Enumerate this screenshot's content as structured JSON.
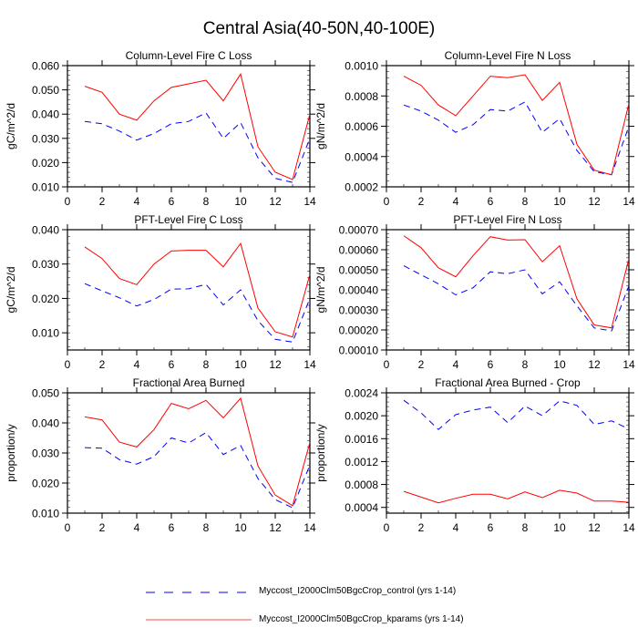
{
  "title": "Central Asia(40-50N,40-100E)",
  "legend": [
    {
      "label": "Myccost_I2000Clm50BgcCrop_control (yrs 1-14)",
      "color": "#0000ff",
      "dash": true
    },
    {
      "label": "Myccost_I2000Clm50BgcCrop_kparams (yrs 1-14)",
      "color": "#ff0000",
      "dash": false
    }
  ],
  "chart_data": [
    {
      "type": "line",
      "title": "Column-Level Fire C Loss",
      "xlabel": "",
      "ylabel": "gC/m^2/d",
      "xlim": [
        0,
        14
      ],
      "ylim": [
        0.01,
        0.06
      ],
      "xticks": [
        "0",
        "2",
        "4",
        "6",
        "8",
        "10",
        "12",
        "14"
      ],
      "yticks": [
        "0.010",
        "0.020",
        "0.030",
        "0.040",
        "0.050",
        "0.060"
      ],
      "x": [
        1,
        2,
        3,
        4,
        5,
        6,
        7,
        8,
        9,
        10,
        11,
        12,
        13,
        14
      ],
      "series": [
        {
          "name": "Myccost_I2000Clm50BgcCrop_control (yrs 1-14)",
          "values": [
            0.037,
            0.036,
            0.033,
            0.0293,
            0.032,
            0.036,
            0.037,
            0.0405,
            0.03,
            0.0365,
            0.022,
            0.0135,
            0.0118,
            0.03
          ]
        },
        {
          "name": "Myccost_I2000Clm50BgcCrop_kparams (yrs 1-14)",
          "values": [
            0.0515,
            0.049,
            0.04,
            0.0375,
            0.0455,
            0.051,
            0.0525,
            0.054,
            0.0455,
            0.0565,
            0.0265,
            0.016,
            0.013,
            0.04
          ]
        }
      ]
    },
    {
      "type": "line",
      "title": "Column-Level Fire N Loss",
      "xlabel": "",
      "ylabel": "gN/m^2/d",
      "xlim": [
        0,
        14
      ],
      "ylim": [
        0.0002,
        0.001
      ],
      "xticks": [
        "0",
        "2",
        "4",
        "6",
        "8",
        "10",
        "12",
        "14"
      ],
      "yticks": [
        "0.0002",
        "0.0004",
        "0.0006",
        "0.0008",
        "0.0010"
      ],
      "x": [
        1,
        2,
        3,
        4,
        5,
        6,
        7,
        8,
        9,
        10,
        11,
        12,
        13,
        14
      ],
      "series": [
        {
          "name": "Myccost_I2000Clm50BgcCrop_control (yrs 1-14)",
          "values": [
            0.00074,
            0.0007,
            0.00064,
            0.00056,
            0.00061,
            0.00071,
            0.0007,
            0.00076,
            0.00056,
            0.00065,
            0.00044,
            0.0003,
            0.00028,
            0.0006
          ]
        },
        {
          "name": "Myccost_I2000Clm50BgcCrop_kparams (yrs 1-14)",
          "values": [
            0.00093,
            0.00087,
            0.00074,
            0.00067,
            0.0008,
            0.00093,
            0.00092,
            0.00094,
            0.00077,
            0.00089,
            0.00048,
            0.00031,
            0.00028,
            0.00075
          ]
        }
      ]
    },
    {
      "type": "line",
      "title": "PFT-Level Fire C Loss",
      "xlabel": "",
      "ylabel": "gC/m^2/d",
      "xlim": [
        0,
        14
      ],
      "ylim": [
        0.005,
        0.04
      ],
      "xticks": [
        "0",
        "2",
        "4",
        "6",
        "8",
        "10",
        "12",
        "14"
      ],
      "yticks": [
        "0.010",
        "0.020",
        "0.030",
        "0.040"
      ],
      "x": [
        1,
        2,
        3,
        4,
        5,
        6,
        7,
        8,
        9,
        10,
        11,
        12,
        13,
        14
      ],
      "series": [
        {
          "name": "Myccost_I2000Clm50BgcCrop_control (yrs 1-14)",
          "values": [
            0.0243,
            0.0222,
            0.0202,
            0.0178,
            0.0197,
            0.0227,
            0.0228,
            0.0241,
            0.0181,
            0.0225,
            0.0135,
            0.0081,
            0.0073,
            0.02
          ]
        },
        {
          "name": "Myccost_I2000Clm50BgcCrop_kparams (yrs 1-14)",
          "values": [
            0.035,
            0.0316,
            0.0258,
            0.024,
            0.03,
            0.0338,
            0.034,
            0.034,
            0.0292,
            0.036,
            0.0172,
            0.0103,
            0.0088,
            0.027
          ]
        }
      ]
    },
    {
      "type": "line",
      "title": "PFT-Level Fire N Loss",
      "xlabel": "",
      "ylabel": "gN/m^2/d",
      "xlim": [
        0,
        14
      ],
      "ylim": [
        0.0001,
        0.0007
      ],
      "xticks": [
        "0",
        "2",
        "4",
        "6",
        "8",
        "10",
        "12",
        "14"
      ],
      "yticks": [
        "0.00010",
        "0.00020",
        "0.00030",
        "0.00040",
        "0.00050",
        "0.00060",
        "0.00070"
      ],
      "x": [
        1,
        2,
        3,
        4,
        5,
        6,
        7,
        8,
        9,
        10,
        11,
        12,
        13,
        14
      ],
      "series": [
        {
          "name": "Myccost_I2000Clm50BgcCrop_control (yrs 1-14)",
          "values": [
            0.00052,
            0.000475,
            0.00043,
            0.000375,
            0.00041,
            0.00049,
            0.00048,
            0.0005,
            0.00038,
            0.00044,
            0.00032,
            0.00021,
            0.000195,
            0.00042
          ]
        },
        {
          "name": "Myccost_I2000Clm50BgcCrop_kparams (yrs 1-14)",
          "values": [
            0.00067,
            0.00061,
            0.00051,
            0.000465,
            0.00057,
            0.000665,
            0.000648,
            0.00065,
            0.00054,
            0.00062,
            0.000355,
            0.000225,
            0.00021,
            0.000555
          ]
        }
      ]
    },
    {
      "type": "line",
      "title": "Fractional Area Burned",
      "xlabel": "",
      "ylabel": "proportion/y",
      "xlim": [
        0,
        14
      ],
      "ylim": [
        0.01,
        0.05
      ],
      "xticks": [
        "0",
        "2",
        "4",
        "6",
        "8",
        "10",
        "12",
        "14"
      ],
      "yticks": [
        "0.010",
        "0.020",
        "0.030",
        "0.040",
        "0.050"
      ],
      "x": [
        1,
        2,
        3,
        4,
        5,
        6,
        7,
        8,
        9,
        10,
        11,
        12,
        13,
        14
      ],
      "series": [
        {
          "name": "Myccost_I2000Clm50BgcCrop_control (yrs 1-14)",
          "values": [
            0.0318,
            0.0316,
            0.0278,
            0.0263,
            0.0288,
            0.035,
            0.0333,
            0.0368,
            0.0295,
            0.0325,
            0.0215,
            0.0145,
            0.0118,
            0.026
          ]
        },
        {
          "name": "Myccost_I2000Clm50BgcCrop_kparams (yrs 1-14)",
          "values": [
            0.042,
            0.041,
            0.0336,
            0.032,
            0.0378,
            0.0465,
            0.0447,
            0.0475,
            0.0417,
            0.0482,
            0.0257,
            0.016,
            0.0125,
            0.0335
          ]
        }
      ]
    },
    {
      "type": "line",
      "title": "Fractional Area Burned - Crop",
      "xlabel": "",
      "ylabel": "proportion/y",
      "xlim": [
        0,
        14
      ],
      "ylim": [
        0.0003,
        0.0024
      ],
      "xticks": [
        "0",
        "2",
        "4",
        "6",
        "8",
        "10",
        "12",
        "14"
      ],
      "yticks": [
        "0.0004",
        "0.0008",
        "0.0012",
        "0.0016",
        "0.0020",
        "0.0024"
      ],
      "x": [
        1,
        2,
        3,
        4,
        5,
        6,
        7,
        8,
        9,
        10,
        11,
        12,
        13,
        14
      ],
      "series": [
        {
          "name": "Myccost_I2000Clm50BgcCrop_control (yrs 1-14)",
          "values": [
            0.00227,
            0.00205,
            0.00176,
            0.00202,
            0.0021,
            0.00215,
            0.00188,
            0.00217,
            0.002,
            0.00226,
            0.00218,
            0.00185,
            0.00191,
            0.00177
          ]
        },
        {
          "name": "Myccost_I2000Clm50BgcCrop_kparams (yrs 1-14)",
          "values": [
            0.00068,
            0.00058,
            0.00048,
            0.00056,
            0.00063,
            0.00063,
            0.00055,
            0.00067,
            0.00057,
            0.0007,
            0.00065,
            0.00051,
            0.00051,
            0.00049
          ]
        }
      ]
    }
  ]
}
